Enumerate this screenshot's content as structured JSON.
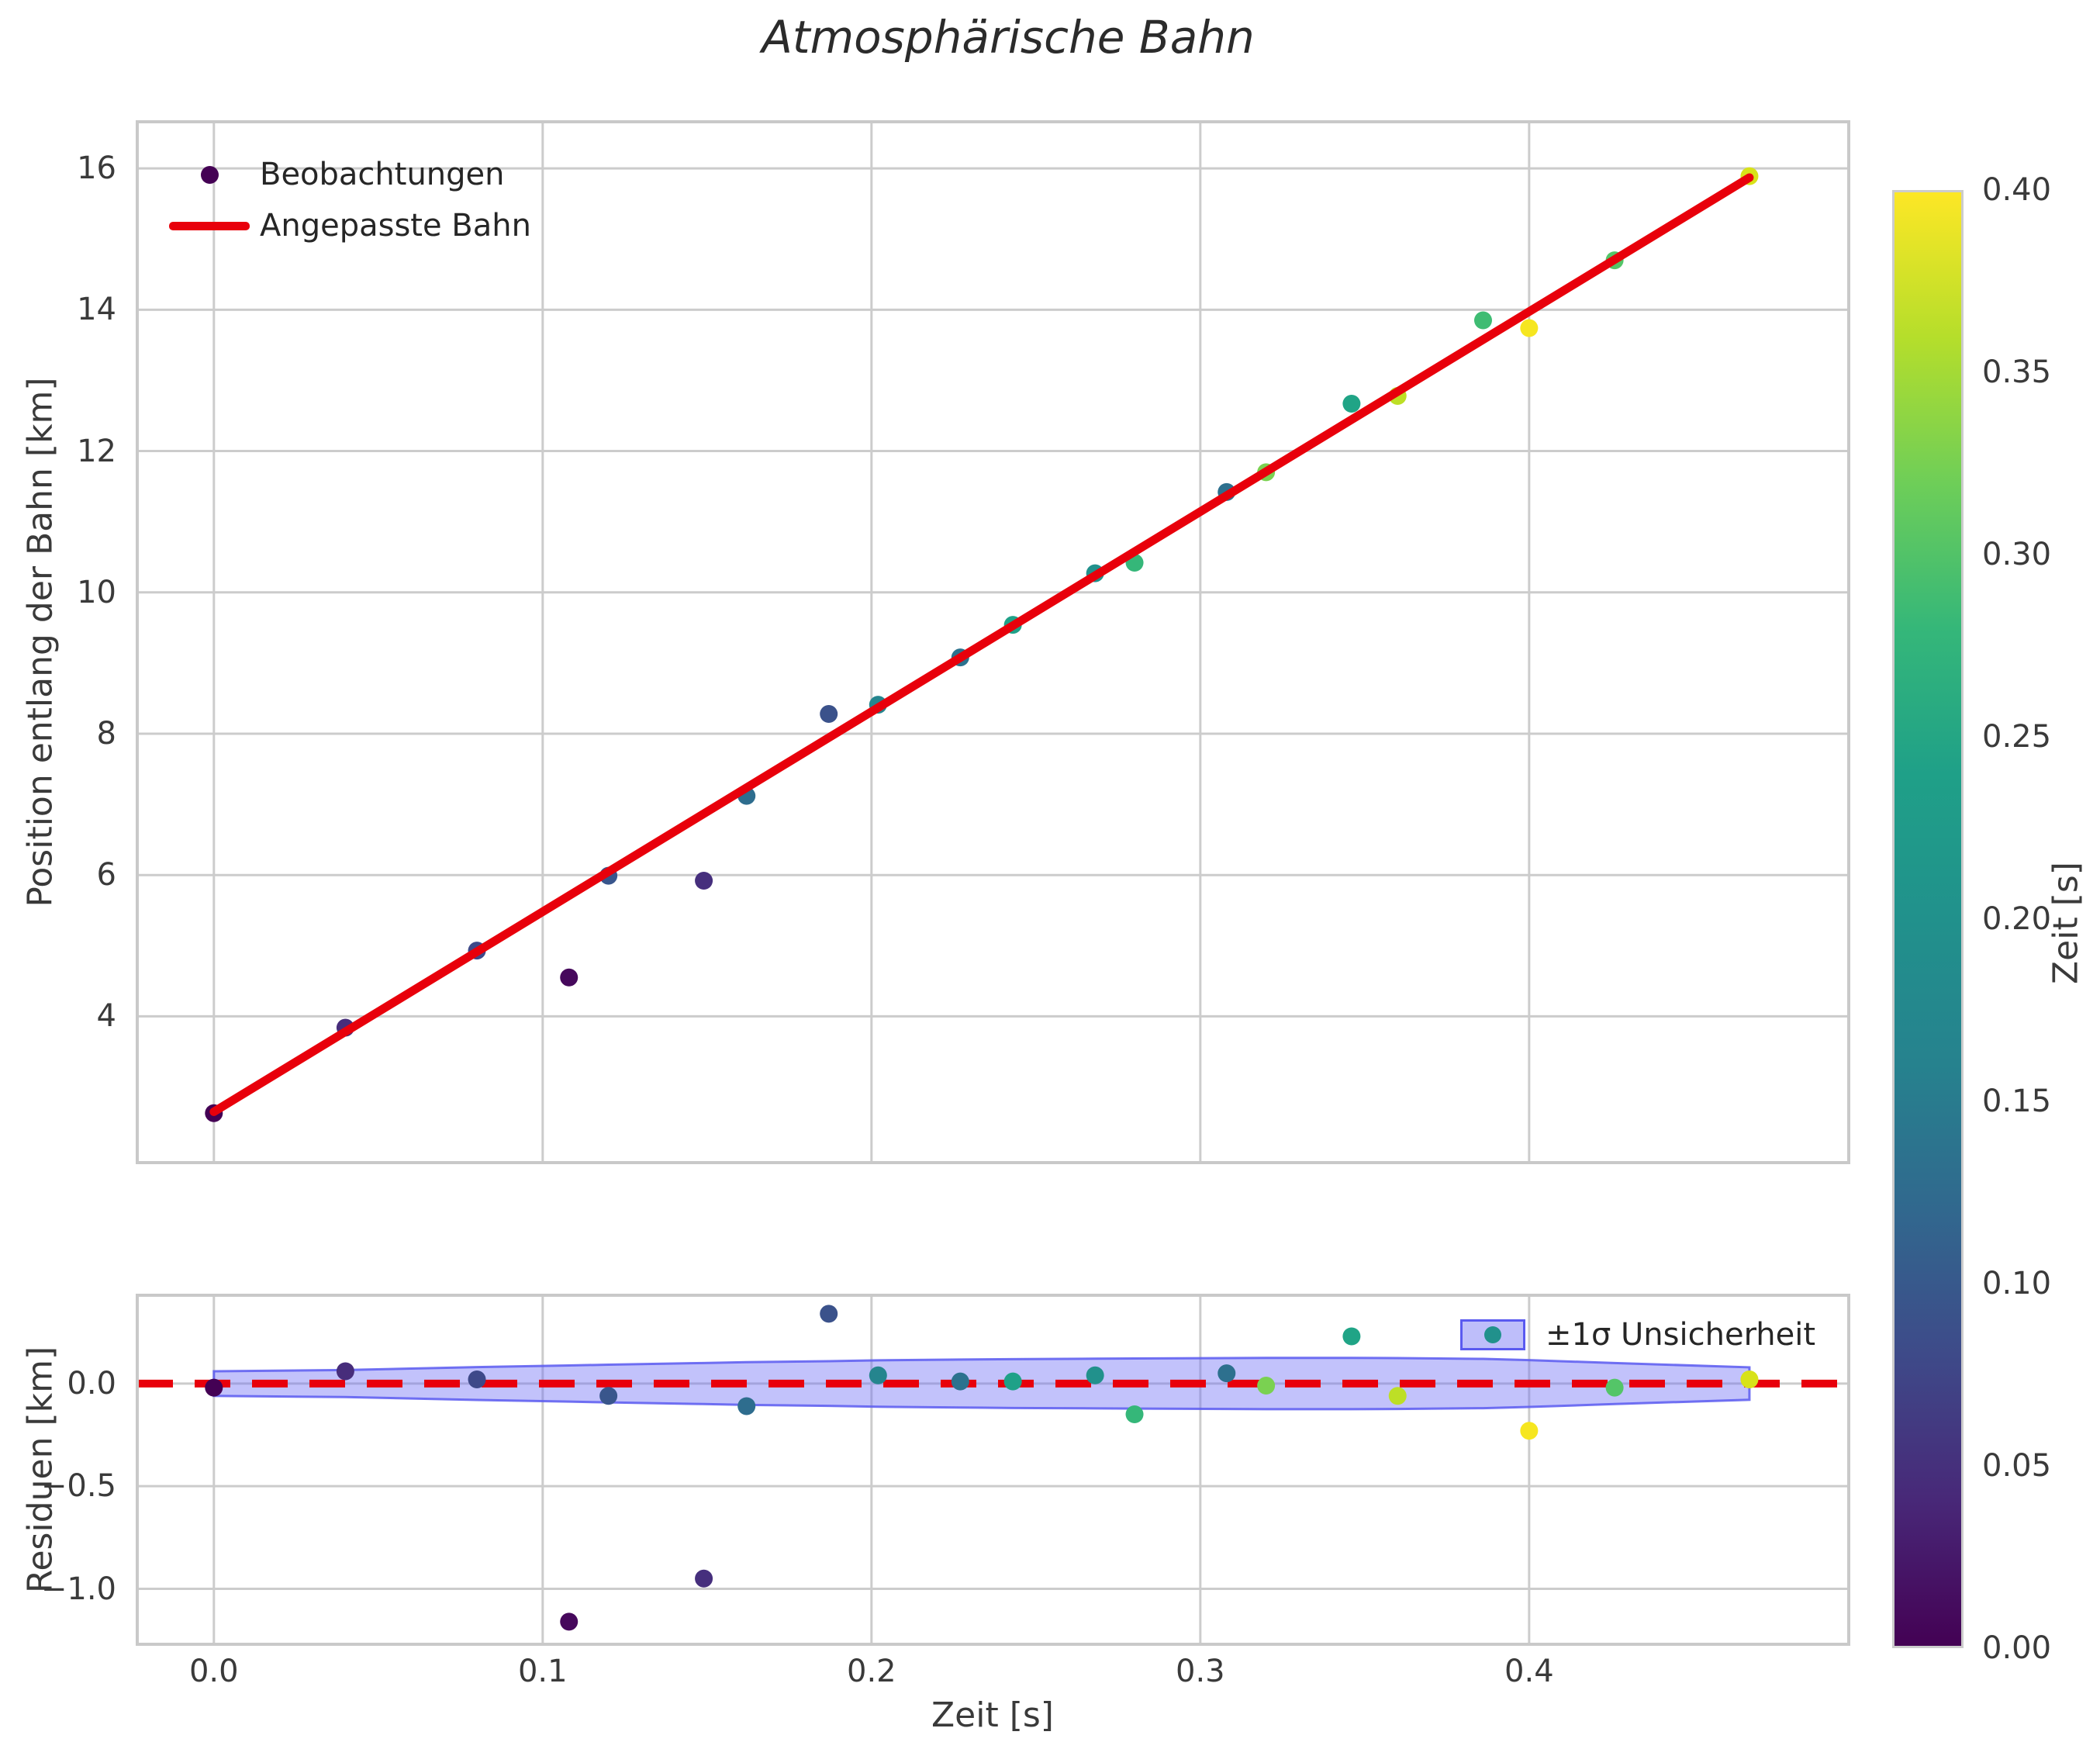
{
  "title": "Atmosphärische Bahn",
  "top_plot": {
    "ylabel": "Position entlang der Bahn [km]",
    "legend": {
      "observations": "Beobachtungen",
      "fit": "Angepasste Bahn"
    }
  },
  "residual_plot": {
    "ylabel": "Residuen [km]",
    "xlabel": "Zeit [s]",
    "legend": {
      "band": "±1σ Unsicherheit"
    }
  },
  "colorbar": {
    "label": "Zeit [s]",
    "tick_labels": [
      "0.40",
      "0.35",
      "0.30",
      "0.25",
      "0.20",
      "0.15",
      "0.10",
      "0.05",
      "0.00"
    ],
    "vmin": 0.0,
    "vmax": 0.4,
    "gradient_stops_bottom_to_top": [
      "#440154",
      "#482878",
      "#3e4a89",
      "#31688e",
      "#26828e",
      "#21918c",
      "#1fa088",
      "#35b779",
      "#6ece58",
      "#b5de2b",
      "#fde725"
    ]
  },
  "style_colors": {
    "fit_line": "#e8000b",
    "zero_line": "#e8000b",
    "gridline": "#cccccc",
    "spine": "#c9c9c9",
    "band_fill": "#6e6ef5",
    "band_fill_opacity": 0.42,
    "band_edge": "#5a5af0",
    "text": "#3a3a3a"
  },
  "chart_data": {
    "type": "scatter",
    "title": "Atmosphärische Bahn",
    "xlabel": "Zeit [s]",
    "grid": true,
    "panels": [
      {
        "name": "trajectory",
        "ylabel": "Position entlang der Bahn [km]",
        "xlim": [
          -0.0233,
          0.4972
        ],
        "ylim": [
          1.93,
          16.66
        ],
        "x_gridlines": [
          0.0,
          0.1,
          0.2,
          0.3,
          0.4
        ],
        "y_ticks": [
          4,
          6,
          8,
          10,
          12,
          14,
          16
        ],
        "x_tick_labels_shown": false
      },
      {
        "name": "residuals",
        "ylabel": "Residuen [km]",
        "xlim": [
          -0.0233,
          0.4972
        ],
        "ylim": [
          -1.27,
          0.43
        ],
        "x_gridlines": [
          0.0,
          0.1,
          0.2,
          0.3,
          0.4
        ],
        "x_ticks": [
          0.0,
          0.1,
          0.2,
          0.3,
          0.4
        ],
        "x_tick_labels": [
          "0.0",
          "0.1",
          "0.2",
          "0.3",
          "0.4"
        ],
        "y_ticks": [
          0.0,
          -0.5,
          -1.0
        ],
        "y_tick_labels": [
          "0.0",
          "−0.5",
          "−1.0"
        ]
      }
    ],
    "series": [
      {
        "name": "Beobachtungen",
        "type": "scatter",
        "color_mapped_to": "Zeit [s]",
        "colormap": "viridis",
        "points": [
          {
            "t": 0.0,
            "y": 2.63,
            "residual": -0.02,
            "color": "#440154"
          },
          {
            "t": 0.04,
            "y": 3.84,
            "residual": 0.06,
            "color": "#472d7b"
          },
          {
            "t": 0.08,
            "y": 4.93,
            "residual": 0.02,
            "color": "#3e4989"
          },
          {
            "t": 0.108,
            "y": 4.55,
            "residual": -1.16,
            "color": "#46085c"
          },
          {
            "t": 0.12,
            "y": 5.99,
            "residual": -0.06,
            "color": "#39568c"
          },
          {
            "t": 0.149,
            "y": 5.92,
            "residual": -0.95,
            "color": "#462f7d"
          },
          {
            "t": 0.162,
            "y": 7.12,
            "residual": -0.11,
            "color": "#2e6d8e"
          },
          {
            "t": 0.187,
            "y": 8.28,
            "residual": 0.34,
            "color": "#3b528b"
          },
          {
            "t": 0.202,
            "y": 8.41,
            "residual": 0.04,
            "color": "#25858e"
          },
          {
            "t": 0.227,
            "y": 9.08,
            "residual": 0.01,
            "color": "#2c728e"
          },
          {
            "t": 0.243,
            "y": 9.54,
            "residual": 0.01,
            "color": "#1fa188"
          },
          {
            "t": 0.268,
            "y": 10.27,
            "residual": 0.04,
            "color": "#21918c"
          },
          {
            "t": 0.28,
            "y": 10.42,
            "residual": -0.15,
            "color": "#35b779"
          },
          {
            "t": 0.308,
            "y": 11.42,
            "residual": 0.05,
            "color": "#2d708e"
          },
          {
            "t": 0.32,
            "y": 11.7,
            "residual": -0.01,
            "color": "#7ad151"
          },
          {
            "t": 0.346,
            "y": 12.67,
            "residual": 0.23,
            "color": "#20a486"
          },
          {
            "t": 0.36,
            "y": 12.78,
            "residual": -0.06,
            "color": "#bddf26"
          },
          {
            "t": 0.386,
            "y": 13.85,
            "residual": null,
            "color": "#3fbc73"
          },
          {
            "t": 0.4,
            "y": 13.74,
            "residual": -0.23,
            "color": "#f6e620"
          },
          {
            "t": 0.426,
            "y": 14.7,
            "residual": -0.02,
            "color": "#54c568"
          },
          {
            "t": 0.467,
            "y": 15.89,
            "residual": 0.02,
            "color": "#d8e219"
          }
        ]
      },
      {
        "name": "Angepasste Bahn",
        "type": "line",
        "color": "#e8000b",
        "x": [
          0.0,
          0.467
        ],
        "y": [
          2.65,
          15.87
        ],
        "slope_km_per_s": 28.3,
        "intercept_km": 2.65
      },
      {
        "name": "±1σ Unsicherheit",
        "type": "band",
        "center": 0.0,
        "t": [
          0.0,
          0.04,
          0.08,
          0.108,
          0.12,
          0.149,
          0.162,
          0.187,
          0.202,
          0.227,
          0.243,
          0.268,
          0.28,
          0.308,
          0.32,
          0.346,
          0.36,
          0.386,
          0.4,
          0.426,
          0.467
        ],
        "half_width": [
          0.06,
          0.066,
          0.08,
          0.088,
          0.092,
          0.1,
          0.104,
          0.109,
          0.113,
          0.117,
          0.119,
          0.121,
          0.122,
          0.124,
          0.125,
          0.125,
          0.124,
          0.12,
          0.114,
          0.1,
          0.079
        ]
      }
    ],
    "zero_line": {
      "value": 0.0,
      "style": "dashed",
      "color": "#e8000b"
    },
    "colorbar": {
      "label": "Zeit [s]",
      "vmin": 0.0,
      "vmax": 0.4,
      "ticks": [
        0.4,
        0.35,
        0.3,
        0.25,
        0.2,
        0.15,
        0.1,
        0.05,
        0.0
      ]
    }
  }
}
